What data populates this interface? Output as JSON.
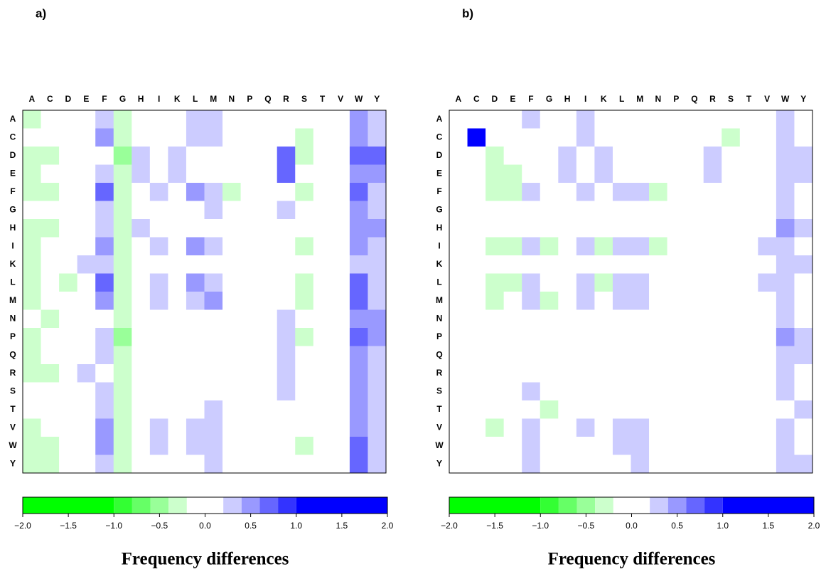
{
  "chart_data": [
    {
      "type": "heatmap",
      "title": "a)",
      "columns": [
        "A",
        "C",
        "D",
        "E",
        "F",
        "G",
        "H",
        "I",
        "K",
        "L",
        "M",
        "N",
        "P",
        "Q",
        "R",
        "S",
        "T",
        "V",
        "W",
        "Y"
      ],
      "rows": [
        "A",
        "C",
        "D",
        "E",
        "F",
        "G",
        "H",
        "I",
        "K",
        "L",
        "M",
        "N",
        "P",
        "Q",
        "R",
        "S",
        "T",
        "V",
        "W",
        "Y"
      ],
      "values": [
        [
          -0.3,
          0,
          0,
          0,
          0.3,
          -0.3,
          0,
          0,
          0,
          0.3,
          0.3,
          0,
          0,
          0,
          0,
          0,
          0,
          0,
          0.5,
          0.3
        ],
        [
          0,
          0,
          0,
          0,
          0.5,
          -0.3,
          0,
          0,
          0,
          0.3,
          0.3,
          0,
          0,
          0,
          0,
          -0.3,
          0,
          0,
          0.5,
          0.3
        ],
        [
          -0.3,
          -0.3,
          0,
          0,
          0,
          -0.5,
          0.3,
          0,
          0.3,
          0,
          0,
          0,
          0,
          0,
          0.7,
          -0.3,
          0,
          0,
          0.7,
          0.7
        ],
        [
          -0.3,
          0,
          0,
          0,
          0.3,
          -0.3,
          0.3,
          0,
          0.3,
          0,
          0,
          0,
          0,
          0,
          0.7,
          0,
          0,
          0,
          0.5,
          0.5
        ],
        [
          -0.3,
          -0.3,
          0,
          0,
          0.7,
          -0.3,
          0,
          0.3,
          0,
          0.5,
          0.3,
          -0.3,
          0,
          0,
          0,
          -0.3,
          0,
          0,
          0.7,
          0.3
        ],
        [
          0,
          0,
          0,
          0,
          0.3,
          -0.3,
          0,
          0,
          0,
          0,
          0.3,
          0,
          0,
          0,
          0.3,
          0,
          0,
          0,
          0.5,
          0.3
        ],
        [
          -0.3,
          -0.3,
          0,
          0,
          0.3,
          -0.3,
          0.3,
          0,
          0,
          0,
          0,
          0,
          0,
          0,
          0,
          0,
          0,
          0,
          0.5,
          0.5
        ],
        [
          -0.3,
          0,
          0,
          0,
          0.5,
          -0.3,
          0,
          0.3,
          0,
          0.5,
          0.3,
          0,
          0,
          0,
          0,
          -0.3,
          0,
          0,
          0.5,
          0.3
        ],
        [
          -0.3,
          0,
          0,
          0.3,
          0.3,
          -0.3,
          0,
          0,
          0,
          0,
          0,
          0,
          0,
          0,
          0,
          0,
          0,
          0,
          0.3,
          0.3
        ],
        [
          -0.3,
          0,
          -0.3,
          0,
          0.7,
          -0.3,
          0,
          0.3,
          0,
          0.5,
          0.3,
          0,
          0,
          0,
          0,
          -0.3,
          0,
          0,
          0.7,
          0.3
        ],
        [
          -0.3,
          0,
          0,
          0,
          0.5,
          -0.3,
          0,
          0.3,
          0,
          0.3,
          0.5,
          0,
          0,
          0,
          0,
          -0.3,
          0,
          0,
          0.7,
          0.3
        ],
        [
          0,
          -0.3,
          0,
          0,
          0,
          -0.3,
          0,
          0,
          0,
          0,
          0,
          0,
          0,
          0,
          0.3,
          0,
          0,
          0,
          0.5,
          0.5
        ],
        [
          -0.3,
          0,
          0,
          0,
          0.3,
          -0.5,
          0,
          0,
          0,
          0,
          0,
          0,
          0,
          0,
          0.3,
          -0.3,
          0,
          0,
          0.7,
          0.5
        ],
        [
          -0.3,
          0,
          0,
          0,
          0.3,
          -0.3,
          0,
          0,
          0,
          0,
          0,
          0,
          0,
          0,
          0.3,
          0,
          0,
          0,
          0.5,
          0.3
        ],
        [
          -0.3,
          -0.3,
          0,
          0.3,
          0,
          -0.3,
          0,
          0,
          0,
          0,
          0,
          0,
          0,
          0,
          0.3,
          0,
          0,
          0,
          0.5,
          0.3
        ],
        [
          0,
          0,
          0,
          0,
          0.3,
          -0.3,
          0,
          0,
          0,
          0,
          0,
          0,
          0,
          0,
          0.3,
          0,
          0,
          0,
          0.5,
          0.3
        ],
        [
          0,
          0,
          0,
          0,
          0.3,
          -0.3,
          0,
          0,
          0,
          0,
          0.3,
          0,
          0,
          0,
          0,
          0,
          0,
          0,
          0.5,
          0.3
        ],
        [
          -0.3,
          0,
          0,
          0,
          0.5,
          -0.3,
          0,
          0.3,
          0,
          0.3,
          0.3,
          0,
          0,
          0,
          0,
          0,
          0,
          0,
          0.5,
          0.3
        ],
        [
          -0.3,
          -0.3,
          0,
          0,
          0.5,
          -0.3,
          0,
          0.3,
          0,
          0.3,
          0.3,
          0,
          0,
          0,
          0,
          -0.3,
          0,
          0,
          0.7,
          0.3
        ],
        [
          -0.3,
          -0.3,
          0,
          0,
          0.3,
          -0.3,
          0,
          0,
          0,
          0,
          0.3,
          0,
          0,
          0,
          0,
          0,
          0,
          0,
          0.7,
          0.3
        ]
      ],
      "colorbar": {
        "label": "Frequency differences",
        "bounds": [
          -2,
          -1,
          -0.8,
          -0.6,
          -0.4,
          -0.2,
          0.2,
          0.4,
          0.6,
          0.8,
          1,
          2
        ],
        "colors": [
          "#00ff00",
          "#33ff33",
          "#66ff66",
          "#99ff99",
          "#ccffcc",
          "#ffffff",
          "#ccccff",
          "#9999ff",
          "#6666ff",
          "#3333ff",
          "#0000ff"
        ],
        "xlim": [
          -2,
          2
        ],
        "xticks": [
          {
            "value": -2,
            "label": "−2.0"
          },
          {
            "value": -1.5,
            "label": "−1.5"
          },
          {
            "value": -1,
            "label": "−1.0"
          },
          {
            "value": -0.5,
            "label": "−0.5"
          },
          {
            "value": 0,
            "label": "0.0"
          },
          {
            "value": 0.5,
            "label": "0.5"
          },
          {
            "value": 1,
            "label": "1.0"
          },
          {
            "value": 1.5,
            "label": "1.5"
          },
          {
            "value": 2,
            "label": "2.0"
          }
        ]
      }
    },
    {
      "type": "heatmap",
      "title": "b)",
      "columns": [
        "A",
        "C",
        "D",
        "E",
        "F",
        "G",
        "H",
        "I",
        "K",
        "L",
        "M",
        "N",
        "P",
        "Q",
        "R",
        "S",
        "T",
        "V",
        "W",
        "Y"
      ],
      "rows": [
        "A",
        "C",
        "D",
        "E",
        "F",
        "G",
        "H",
        "I",
        "K",
        "L",
        "M",
        "N",
        "P",
        "Q",
        "R",
        "S",
        "T",
        "V",
        "W",
        "Y"
      ],
      "values": [
        [
          0,
          0,
          0,
          0,
          0.3,
          0,
          0,
          0.3,
          0,
          0,
          0,
          0,
          0,
          0,
          0,
          0,
          0,
          0,
          0.3,
          0
        ],
        [
          0,
          1.5,
          0,
          0,
          0,
          0,
          0,
          0.3,
          0,
          0,
          0,
          0,
          0,
          0,
          0,
          -0.3,
          0,
          0,
          0.3,
          0
        ],
        [
          0,
          0,
          -0.3,
          0,
          0,
          0,
          0.3,
          0,
          0.3,
          0,
          0,
          0,
          0,
          0,
          0.3,
          0,
          0,
          0,
          0.3,
          0.3
        ],
        [
          0,
          0,
          -0.3,
          -0.3,
          0,
          0,
          0.3,
          0,
          0.3,
          0,
          0,
          0,
          0,
          0,
          0.3,
          0,
          0,
          0,
          0.3,
          0.3
        ],
        [
          0,
          0,
          -0.3,
          -0.3,
          0.3,
          0,
          0,
          0.3,
          0,
          0.3,
          0.3,
          -0.3,
          0,
          0,
          0,
          0,
          0,
          0,
          0.3,
          0
        ],
        [
          0,
          0,
          0,
          0,
          0,
          0,
          0,
          0,
          0,
          0,
          0,
          0,
          0,
          0,
          0,
          0,
          0,
          0,
          0.3,
          0
        ],
        [
          0,
          0,
          0,
          0,
          0,
          0,
          0,
          0,
          0,
          0,
          0,
          0,
          0,
          0,
          0,
          0,
          0,
          0,
          0.5,
          0.3
        ],
        [
          0,
          0,
          -0.3,
          -0.3,
          0.3,
          -0.3,
          0,
          0.3,
          -0.3,
          0.3,
          0.3,
          -0.3,
          0,
          0,
          0,
          0,
          0,
          0.3,
          0.3,
          0
        ],
        [
          0,
          0,
          0,
          0,
          0,
          0,
          0,
          0,
          0,
          0,
          0,
          0,
          0,
          0,
          0,
          0,
          0,
          0,
          0.3,
          0.3
        ],
        [
          0,
          0,
          -0.3,
          -0.3,
          0.3,
          0,
          0,
          0.3,
          -0.3,
          0.3,
          0.3,
          0,
          0,
          0,
          0,
          0,
          0,
          0.3,
          0.3,
          0
        ],
        [
          0,
          0,
          -0.3,
          0,
          0.3,
          -0.3,
          0,
          0.3,
          0,
          0.3,
          0.3,
          0,
          0,
          0,
          0,
          0,
          0,
          0,
          0.3,
          0
        ],
        [
          0,
          0,
          0,
          0,
          0,
          0,
          0,
          0,
          0,
          0,
          0,
          0,
          0,
          0,
          0,
          0,
          0,
          0,
          0.3,
          0
        ],
        [
          0,
          0,
          0,
          0,
          0,
          0,
          0,
          0,
          0,
          0,
          0,
          0,
          0,
          0,
          0,
          0,
          0,
          0,
          0.5,
          0.3
        ],
        [
          0,
          0,
          0,
          0,
          0,
          0,
          0,
          0,
          0,
          0,
          0,
          0,
          0,
          0,
          0,
          0,
          0,
          0,
          0.3,
          0.3
        ],
        [
          0,
          0,
          0,
          0,
          0,
          0,
          0,
          0,
          0,
          0,
          0,
          0,
          0,
          0,
          0,
          0,
          0,
          0,
          0.3,
          0
        ],
        [
          0,
          0,
          0,
          0,
          0.3,
          0,
          0,
          0,
          0,
          0,
          0,
          0,
          0,
          0,
          0,
          0,
          0,
          0,
          0.3,
          0
        ],
        [
          0,
          0,
          0,
          0,
          0,
          -0.3,
          0,
          0,
          0,
          0,
          0,
          0,
          0,
          0,
          0,
          0,
          0,
          0,
          0,
          0.3
        ],
        [
          0,
          0,
          -0.3,
          0,
          0.3,
          0,
          0,
          0.3,
          0,
          0.3,
          0.3,
          0,
          0,
          0,
          0,
          0,
          0,
          0,
          0.3,
          0
        ],
        [
          0,
          0,
          0,
          0,
          0.3,
          0,
          0,
          0,
          0,
          0.3,
          0.3,
          0,
          0,
          0,
          0,
          0,
          0,
          0,
          0.3,
          0
        ],
        [
          0,
          0,
          0,
          0,
          0.3,
          0,
          0,
          0,
          0,
          0,
          0.3,
          0,
          0,
          0,
          0,
          0,
          0,
          0,
          0.3,
          0.3
        ]
      ],
      "colorbar": {
        "label": "Frequency differences",
        "bounds": [
          -2,
          -1,
          -0.8,
          -0.6,
          -0.4,
          -0.2,
          0.2,
          0.4,
          0.6,
          0.8,
          1,
          2
        ],
        "colors": [
          "#00ff00",
          "#33ff33",
          "#66ff66",
          "#99ff99",
          "#ccffcc",
          "#ffffff",
          "#ccccff",
          "#9999ff",
          "#6666ff",
          "#3333ff",
          "#0000ff"
        ],
        "xlim": [
          -2,
          2
        ],
        "xticks": [
          {
            "value": -2,
            "label": "−2.0"
          },
          {
            "value": -1.5,
            "label": "−1.5"
          },
          {
            "value": -1,
            "label": "−1.0"
          },
          {
            "value": -0.5,
            "label": "−0.5"
          },
          {
            "value": 0,
            "label": "0.0"
          },
          {
            "value": 0.5,
            "label": "0.5"
          },
          {
            "value": 1,
            "label": "1.0"
          },
          {
            "value": 1.5,
            "label": "1.5"
          },
          {
            "value": 2,
            "label": "2.0"
          }
        ]
      }
    }
  ]
}
